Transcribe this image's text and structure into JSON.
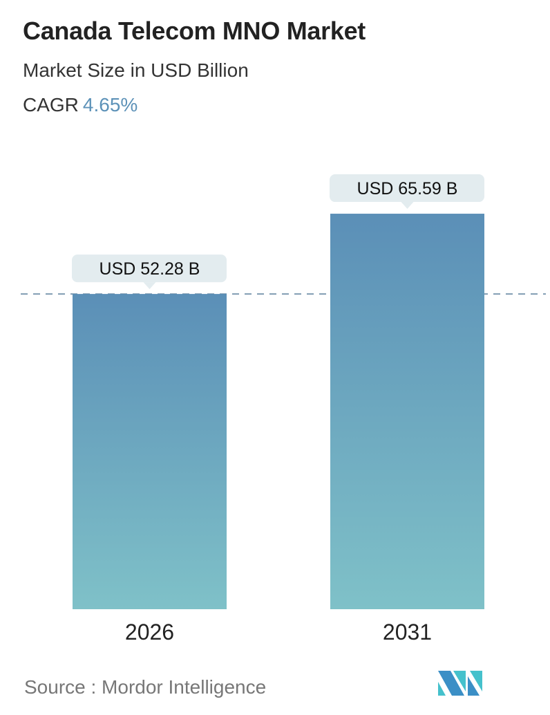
{
  "header": {
    "title": "Canada Telecom MNO Market",
    "subtitle": "Market Size in USD Billion",
    "cagr_label": "CAGR",
    "cagr_value": "4.65%"
  },
  "chart_data": {
    "type": "bar",
    "title": "Canada Telecom MNO Market",
    "ylabel": "Market Size in USD Billion",
    "categories": [
      "2026",
      "2031"
    ],
    "values": [
      52.28,
      65.59
    ],
    "data_labels": [
      "USD 52.28 B",
      "USD 65.59 B"
    ],
    "reference_line": {
      "value": 52.28,
      "style": "dashed"
    },
    "grid": false,
    "colors": {
      "bar_top": "#5b8fb7",
      "bar_bottom": "#7fc1c8",
      "label_bg": "#e3ecef",
      "cagr": "#5d92b8",
      "dash": "#5b7f9c"
    }
  },
  "footer": {
    "source": "Source :  Mordor Intelligence",
    "logo": "Mordor Intelligence"
  }
}
